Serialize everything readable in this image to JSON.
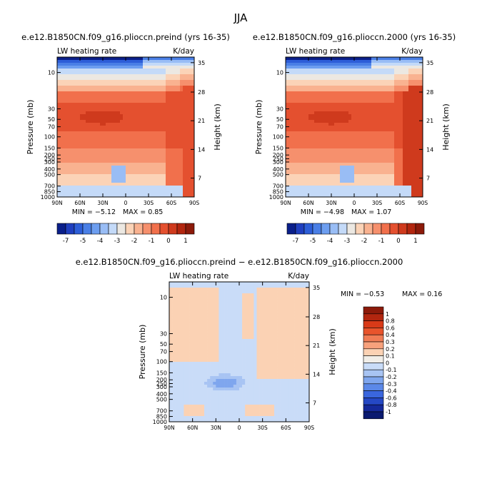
{
  "figure": {
    "title": "JJA",
    "labelbar_ticks": [
      "-7",
      "-5",
      "-4",
      "-3",
      "-2",
      "-1",
      "0",
      "1"
    ],
    "diff_labelbar_levels": [
      "1",
      "0.8",
      "0.6",
      "0.4",
      "0.3",
      "0.2",
      "0.1",
      "0",
      "-0.1",
      "-0.2",
      "-0.3",
      "-0.4",
      "-0.6",
      "-0.8",
      "-1"
    ]
  },
  "colors": {
    "top_palette": [
      "#0a1f8a",
      "#1f3fbf",
      "#2d5ed8",
      "#4a7fe6",
      "#6d9ef0",
      "#99bdf5",
      "#c4daf8",
      "#ece8e2",
      "#fbd3b7",
      "#f9b290",
      "#f6906d",
      "#f1704c",
      "#e4502f",
      "#cf3a1d",
      "#b2260f",
      "#8c1a0a"
    ],
    "diff_palette": [
      "#8c1a0a",
      "#b2260f",
      "#d93a18",
      "#e8542c",
      "#f07c55",
      "#f7a17c",
      "#fbd2b4",
      "#f1eee8",
      "#c9dcf8",
      "#a8c4f3",
      "#7fa6ee",
      "#5b88e8",
      "#3a66de",
      "#2548c4",
      "#15299a",
      "#0a1a70"
    ]
  },
  "chart_data": [
    {
      "type": "heatmap",
      "title": "e.e12.B1850CN.f09_g16.plioccn.preind (yrs 16-35)",
      "left_string": "LW heating rate",
      "right_string": "K/day",
      "xlabel": "",
      "ylabel": "Pressure (mb)",
      "y2label": "Height (km)",
      "x_ticks": [
        "90N",
        "60N",
        "30N",
        "0",
        "30S",
        "60S",
        "90S"
      ],
      "y_ticks": [
        "10",
        "30",
        "50",
        "70",
        "100",
        "150",
        "200",
        "250",
        "300",
        "400",
        "500",
        "700",
        "850",
        "1000"
      ],
      "y2_ticks": [
        "35",
        "28",
        "21",
        "14",
        "7"
      ],
      "min_label": "MIN = −5.12",
      "max_label": "MAX = 0.85",
      "min": -5.12,
      "max": 0.85
    },
    {
      "type": "heatmap",
      "title": "e.e12.B1850CN.f09_g16.plioccn.2000 (yrs 16-35)",
      "left_string": "LW heating rate",
      "right_string": "K/day",
      "xlabel": "",
      "ylabel": "Pressure (mb)",
      "y2label": "Height (km)",
      "x_ticks": [
        "90N",
        "60N",
        "30N",
        "0",
        "30S",
        "60S",
        "90S"
      ],
      "y_ticks": [
        "10",
        "30",
        "50",
        "70",
        "100",
        "150",
        "200",
        "250",
        "300",
        "400",
        "500",
        "700",
        "850",
        "1000"
      ],
      "y2_ticks": [
        "35",
        "28",
        "21",
        "14",
        "7"
      ],
      "min_label": "MIN = −4.98",
      "max_label": "MAX = 1.07",
      "min": -4.98,
      "max": 1.07
    },
    {
      "type": "heatmap",
      "title": "e.e12.B1850CN.f09_g16.plioccn.preind − e.e12.B1850CN.f09_g16.plioccn.2000",
      "left_string": "LW heating rate",
      "right_string": "K/day",
      "xlabel": "",
      "ylabel": "Pressure (mb)",
      "y2label": "Height (km)",
      "x_ticks": [
        "90N",
        "60N",
        "30N",
        "0",
        "30S",
        "60S",
        "90S"
      ],
      "y_ticks": [
        "10",
        "30",
        "50",
        "70",
        "100",
        "150",
        "200",
        "250",
        "300",
        "400",
        "500",
        "700",
        "850",
        "1000"
      ],
      "y2_ticks": [
        "35",
        "28",
        "21",
        "14",
        "7"
      ],
      "min_label": "MIN = −0.53",
      "max_label": "MAX = 0.16",
      "min": -0.53,
      "max": 0.16
    }
  ]
}
